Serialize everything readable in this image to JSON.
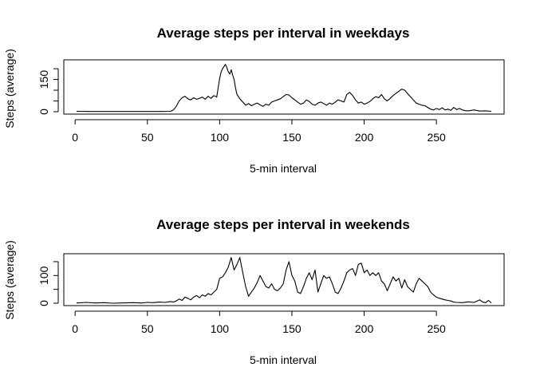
{
  "chart_data": [
    {
      "type": "line",
      "title": "Average steps per interval in weekdays",
      "xlabel": "5-min interval",
      "ylabel": "Steps (average)",
      "xlim": [
        1,
        288
      ],
      "ylim": [
        0,
        230
      ],
      "xticks": [
        0,
        50,
        100,
        150,
        200,
        250
      ],
      "yticks": [
        0,
        50,
        100,
        150,
        200
      ],
      "ytick_labels": [
        "0",
        "",
        "",
        "150",
        ""
      ],
      "grid": false,
      "series": [
        {
          "points": [
            [
              1,
              2
            ],
            [
              10,
              1
            ],
            [
              20,
              1
            ],
            [
              30,
              1
            ],
            [
              40,
              1
            ],
            [
              50,
              1
            ],
            [
              60,
              1
            ],
            [
              66,
              2
            ],
            [
              68,
              8
            ],
            [
              70,
              25
            ],
            [
              72,
              50
            ],
            [
              74,
              65
            ],
            [
              76,
              72
            ],
            [
              78,
              60
            ],
            [
              80,
              55
            ],
            [
              82,
              65
            ],
            [
              84,
              58
            ],
            [
              86,
              62
            ],
            [
              88,
              68
            ],
            [
              90,
              58
            ],
            [
              92,
              72
            ],
            [
              94,
              62
            ],
            [
              96,
              75
            ],
            [
              98,
              68
            ],
            [
              100,
              155
            ],
            [
              101,
              185
            ],
            [
              102,
              200
            ],
            [
              103,
              210
            ],
            [
              104,
              220
            ],
            [
              105,
              205
            ],
            [
              106,
              185
            ],
            [
              107,
              175
            ],
            [
              108,
              195
            ],
            [
              109,
              170
            ],
            [
              110,
              150
            ],
            [
              111,
              110
            ],
            [
              112,
              80
            ],
            [
              114,
              60
            ],
            [
              116,
              45
            ],
            [
              118,
              30
            ],
            [
              120,
              38
            ],
            [
              122,
              28
            ],
            [
              124,
              35
            ],
            [
              126,
              40
            ],
            [
              128,
              32
            ],
            [
              130,
              25
            ],
            [
              132,
              35
            ],
            [
              134,
              30
            ],
            [
              136,
              45
            ],
            [
              138,
              50
            ],
            [
              140,
              55
            ],
            [
              142,
              60
            ],
            [
              144,
              70
            ],
            [
              146,
              80
            ],
            [
              148,
              78
            ],
            [
              150,
              65
            ],
            [
              152,
              55
            ],
            [
              154,
              45
            ],
            [
              156,
              35
            ],
            [
              158,
              40
            ],
            [
              160,
              55
            ],
            [
              162,
              48
            ],
            [
              164,
              35
            ],
            [
              166,
              30
            ],
            [
              168,
              40
            ],
            [
              170,
              45
            ],
            [
              172,
              38
            ],
            [
              174,
              30
            ],
            [
              176,
              40
            ],
            [
              178,
              35
            ],
            [
              180,
              45
            ],
            [
              182,
              55
            ],
            [
              184,
              50
            ],
            [
              186,
              45
            ],
            [
              188,
              80
            ],
            [
              190,
              90
            ],
            [
              192,
              75
            ],
            [
              194,
              55
            ],
            [
              196,
              40
            ],
            [
              198,
              45
            ],
            [
              200,
              35
            ],
            [
              202,
              40
            ],
            [
              204,
              48
            ],
            [
              206,
              60
            ],
            [
              208,
              70
            ],
            [
              210,
              65
            ],
            [
              212,
              80
            ],
            [
              214,
              60
            ],
            [
              216,
              50
            ],
            [
              218,
              62
            ],
            [
              220,
              75
            ],
            [
              222,
              85
            ],
            [
              224,
              95
            ],
            [
              226,
              105
            ],
            [
              228,
              100
            ],
            [
              230,
              85
            ],
            [
              232,
              70
            ],
            [
              234,
              55
            ],
            [
              236,
              40
            ],
            [
              238,
              35
            ],
            [
              240,
              30
            ],
            [
              242,
              28
            ],
            [
              244,
              20
            ],
            [
              246,
              12
            ],
            [
              248,
              8
            ],
            [
              250,
              15
            ],
            [
              252,
              10
            ],
            [
              254,
              18
            ],
            [
              256,
              8
            ],
            [
              258,
              12
            ],
            [
              260,
              6
            ],
            [
              262,
              20
            ],
            [
              264,
              10
            ],
            [
              266,
              15
            ],
            [
              268,
              8
            ],
            [
              270,
              5
            ],
            [
              272,
              4
            ],
            [
              276,
              8
            ],
            [
              280,
              3
            ],
            [
              284,
              4
            ],
            [
              288,
              2
            ]
          ]
        }
      ]
    },
    {
      "type": "line",
      "title": "Average steps per interval in weekends",
      "xlabel": "5-min interval",
      "ylabel": "Steps (average)",
      "xlim": [
        1,
        288
      ],
      "ylim": [
        0,
        170
      ],
      "xticks": [
        0,
        50,
        100,
        150,
        200,
        250
      ],
      "yticks": [
        0,
        50,
        100,
        150
      ],
      "ytick_labels": [
        "0",
        "",
        "100",
        ""
      ],
      "grid": false,
      "series": [
        {
          "points": [
            [
              1,
              1
            ],
            [
              8,
              3
            ],
            [
              14,
              1
            ],
            [
              20,
              2
            ],
            [
              26,
              0
            ],
            [
              32,
              1
            ],
            [
              40,
              2
            ],
            [
              46,
              1
            ],
            [
              50,
              3
            ],
            [
              54,
              2
            ],
            [
              58,
              4
            ],
            [
              62,
              3
            ],
            [
              66,
              6
            ],
            [
              68,
              4
            ],
            [
              70,
              8
            ],
            [
              72,
              15
            ],
            [
              74,
              10
            ],
            [
              76,
              22
            ],
            [
              78,
              18
            ],
            [
              80,
              12
            ],
            [
              82,
              22
            ],
            [
              84,
              28
            ],
            [
              86,
              20
            ],
            [
              88,
              30
            ],
            [
              90,
              25
            ],
            [
              92,
              35
            ],
            [
              94,
              30
            ],
            [
              96,
              40
            ],
            [
              98,
              50
            ],
            [
              100,
              90
            ],
            [
              102,
              95
            ],
            [
              104,
              110
            ],
            [
              106,
              130
            ],
            [
              108,
              165
            ],
            [
              110,
              120
            ],
            [
              112,
              140
            ],
            [
              114,
              165
            ],
            [
              116,
              110
            ],
            [
              118,
              60
            ],
            [
              120,
              25
            ],
            [
              122,
              40
            ],
            [
              124,
              55
            ],
            [
              126,
              75
            ],
            [
              128,
              100
            ],
            [
              130,
              80
            ],
            [
              132,
              60
            ],
            [
              134,
              55
            ],
            [
              136,
              70
            ],
            [
              138,
              50
            ],
            [
              140,
              45
            ],
            [
              142,
              55
            ],
            [
              144,
              70
            ],
            [
              146,
              120
            ],
            [
              148,
              150
            ],
            [
              150,
              100
            ],
            [
              152,
              80
            ],
            [
              154,
              40
            ],
            [
              156,
              35
            ],
            [
              158,
              60
            ],
            [
              160,
              90
            ],
            [
              162,
              110
            ],
            [
              164,
              85
            ],
            [
              166,
              120
            ],
            [
              168,
              40
            ],
            [
              170,
              70
            ],
            [
              172,
              100
            ],
            [
              174,
              90
            ],
            [
              176,
              95
            ],
            [
              178,
              70
            ],
            [
              180,
              40
            ],
            [
              182,
              35
            ],
            [
              184,
              55
            ],
            [
              186,
              80
            ],
            [
              188,
              110
            ],
            [
              190,
              120
            ],
            [
              192,
              125
            ],
            [
              194,
              100
            ],
            [
              196,
              140
            ],
            [
              198,
              145
            ],
            [
              200,
              110
            ],
            [
              202,
              120
            ],
            [
              204,
              100
            ],
            [
              206,
              110
            ],
            [
              208,
              100
            ],
            [
              210,
              110
            ],
            [
              212,
              80
            ],
            [
              214,
              70
            ],
            [
              216,
              45
            ],
            [
              218,
              70
            ],
            [
              220,
              95
            ],
            [
              222,
              80
            ],
            [
              224,
              90
            ],
            [
              226,
              55
            ],
            [
              228,
              85
            ],
            [
              230,
              60
            ],
            [
              232,
              50
            ],
            [
              234,
              40
            ],
            [
              236,
              70
            ],
            [
              238,
              90
            ],
            [
              240,
              80
            ],
            [
              242,
              70
            ],
            [
              244,
              60
            ],
            [
              246,
              40
            ],
            [
              248,
              30
            ],
            [
              250,
              22
            ],
            [
              252,
              18
            ],
            [
              254,
              15
            ],
            [
              256,
              12
            ],
            [
              258,
              10
            ],
            [
              260,
              8
            ],
            [
              262,
              4
            ],
            [
              264,
              3
            ],
            [
              268,
              2
            ],
            [
              272,
              5
            ],
            [
              276,
              3
            ],
            [
              280,
              12
            ],
            [
              282,
              4
            ],
            [
              284,
              2
            ],
            [
              286,
              10
            ],
            [
              288,
              1
            ]
          ]
        }
      ]
    }
  ]
}
